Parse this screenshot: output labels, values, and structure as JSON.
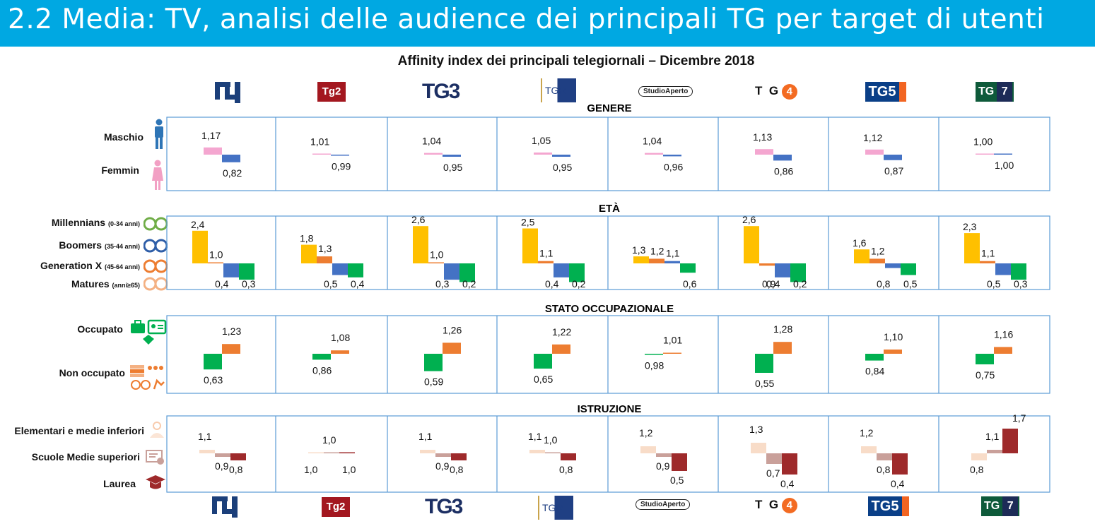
{
  "header": {
    "title": "2.2 Media: TV, analisi delle audience dei principali TG per target di utenti"
  },
  "chart_title": "Affinity index dei principali telegiornali – Dicembre 2018",
  "channels": [
    {
      "logo": "tg1"
    },
    {
      "logo": "Tg2"
    },
    {
      "logo": "TG3"
    },
    {
      "logo": "TGR"
    },
    {
      "logo": "StudioAperto"
    },
    {
      "logo": "TG4"
    },
    {
      "logo": "TG5"
    },
    {
      "logo": "TG La7"
    }
  ],
  "logo_texts": {
    "tg2": "Tg2",
    "tg3": "TG3",
    "tgr": "TGR",
    "sa": "StudioAperto",
    "tg4a": "T",
    "tg4b": "G",
    "tg4c": "4",
    "tg5": "TG5",
    "la7a": "TG",
    "la7b": "7"
  },
  "sections": {
    "genere": "GENERE",
    "eta": "ETÀ",
    "stato": "STATO  OCCUPAZIONALE",
    "istruzione": "ISTRUZIONE"
  },
  "row_labels": {
    "maschio": "Maschio",
    "femmin": "Femmin",
    "millennians": "Millennians",
    "millennians_sub": "(0-34 anni)",
    "boomers": "Boomers",
    "boomers_sub": "(35-44 anni)",
    "genx": "Generation X",
    "genx_sub": "(45-64 anni)",
    "matures": "Matures",
    "matures_sub": "(anni≥65)",
    "occupato": "Occupato",
    "non_occupato": "Non occupato",
    "elementari": "Elementari e medie inferiori",
    "superiori": "Scuole Medie superiori",
    "laurea": "Laurea"
  },
  "colors": {
    "header": "#00a8e2",
    "border": "#5b9bd5",
    "maschio": "#f4a6d0",
    "femmina": "#4472c4",
    "millennians": "#ffc000",
    "boomers": "#ed7d31",
    "genx": "#4472c4",
    "matures": "#00b050",
    "occupato": "#ed7d31",
    "non_occupato": "#00b050",
    "elementari": "#f8dcc8",
    "superiori": "#c9a09a",
    "laurea": "#9e2a2b"
  },
  "chart_data": [
    {
      "type": "bar",
      "title": "GENERE",
      "categories": [
        "TG1",
        "TG2",
        "TG3",
        "TGR",
        "Studio Aperto",
        "TG4",
        "TG5",
        "TG La7"
      ],
      "series": [
        {
          "name": "Maschio",
          "values": [
            1.17,
            1.01,
            1.04,
            1.05,
            1.04,
            1.13,
            1.12,
            1.0
          ],
          "labels": [
            "1,17",
            "1,01",
            "1,04",
            "1,05",
            "1,04",
            "1,13",
            "1,12",
            "1,00"
          ]
        },
        {
          "name": "Femmin",
          "values": [
            0.82,
            0.99,
            0.95,
            0.95,
            0.96,
            0.86,
            0.87,
            1.0
          ],
          "labels": [
            "0,82",
            "0,99",
            "0,95",
            "0,95",
            "0,96",
            "0,86",
            "0,87",
            "1,00"
          ]
        }
      ]
    },
    {
      "type": "bar",
      "title": "ETÀ",
      "categories": [
        "TG1",
        "TG2",
        "TG3",
        "TGR",
        "Studio Aperto",
        "TG4",
        "TG5",
        "TG La7"
      ],
      "series": [
        {
          "name": "Millennians",
          "values": [
            2.4,
            1.8,
            2.6,
            2.5,
            1.3,
            2.6,
            1.6,
            2.3
          ],
          "labels": [
            "2,4",
            "1,8",
            "2,6",
            "2,5",
            "1,3",
            "2,6",
            "1,6",
            "2,3"
          ]
        },
        {
          "name": "Boomers",
          "values": [
            1.0,
            1.3,
            1.0,
            1.1,
            1.2,
            0.9,
            1.2,
            1.1
          ],
          "labels": [
            "1,0",
            "1,3",
            "1,0",
            "1,1",
            "1,2",
            "0,9",
            "1,2",
            "1,1"
          ]
        },
        {
          "name": "Generation X",
          "values": [
            0.4,
            0.5,
            0.3,
            0.4,
            1.1,
            0.4,
            0.8,
            0.5
          ],
          "labels": [
            "0,4",
            "0,5",
            "0,3",
            "0,4",
            "1,1",
            "0,4",
            "0,8",
            "0,5"
          ]
        },
        {
          "name": "Matures",
          "values": [
            0.3,
            0.4,
            0.2,
            0.2,
            0.6,
            0.2,
            0.5,
            0.3
          ],
          "labels": [
            "0,3",
            "0,4",
            "0,2",
            "0,2",
            "0,6",
            "0,2",
            "0,5",
            "0,3"
          ]
        }
      ]
    },
    {
      "type": "bar",
      "title": "STATO  OCCUPAZIONALE",
      "categories": [
        "TG1",
        "TG2",
        "TG3",
        "TGR",
        "Studio Aperto",
        "TG4",
        "TG5",
        "TG La7"
      ],
      "series": [
        {
          "name": "Non occupato",
          "values": [
            0.63,
            0.86,
            0.59,
            0.65,
            0.98,
            0.55,
            0.84,
            0.75
          ],
          "labels": [
            "0,63",
            "0,86",
            "0,59",
            "0,65",
            "0,98",
            "0,55",
            "0,84",
            "0,75"
          ]
        },
        {
          "name": "Occupato",
          "values": [
            1.23,
            1.08,
            1.26,
            1.22,
            1.01,
            1.28,
            1.1,
            1.16
          ],
          "labels": [
            "1,23",
            "1,08",
            "1,26",
            "1,22",
            "1,01",
            "1,28",
            "1,10",
            "1,16"
          ]
        }
      ]
    },
    {
      "type": "bar",
      "title": "ISTRUZIONE",
      "categories": [
        "TG1",
        "TG2",
        "TG3",
        "TGR",
        "Studio Aperto",
        "TG4",
        "TG5",
        "TG La7"
      ],
      "series": [
        {
          "name": "Elementari e medie inferiori",
          "values": [
            1.1,
            1.0,
            1.1,
            1.1,
            1.2,
            1.3,
            1.2,
            0.8
          ],
          "labels": [
            "1,1",
            "1,0",
            "1,1",
            "1,1",
            "1,2",
            "1,3",
            "1,2",
            "0,8"
          ]
        },
        {
          "name": "Scuole Medie superiori",
          "values": [
            0.9,
            1.0,
            0.9,
            1.0,
            0.9,
            0.7,
            0.8,
            1.1
          ],
          "labels": [
            "0,9",
            "1,0",
            "0,9",
            "1,0",
            "0,9",
            "0,7",
            "0,8",
            "1,1"
          ]
        },
        {
          "name": "Laurea",
          "values": [
            0.8,
            1.0,
            0.8,
            0.8,
            0.5,
            0.4,
            0.4,
            1.7
          ],
          "labels": [
            "0,8",
            "1,0",
            "0,8",
            "0,8",
            "0,5",
            "0,4",
            "0,4",
            "1,7"
          ]
        }
      ]
    }
  ]
}
